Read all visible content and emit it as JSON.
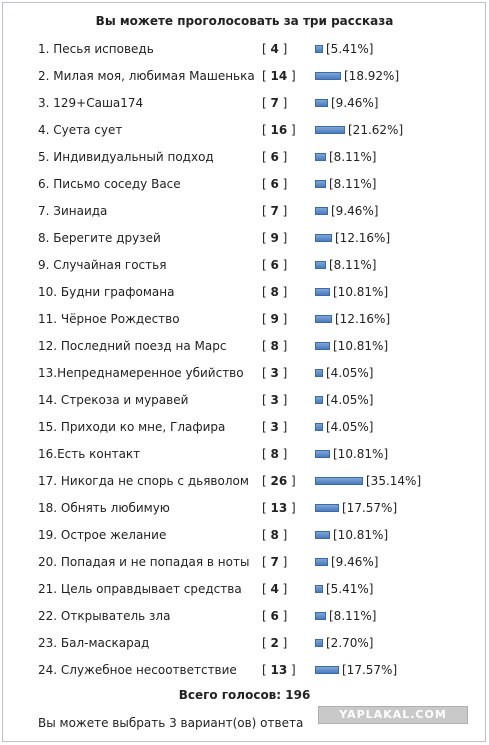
{
  "poll": {
    "title": "Вы можете проголосовать за три рассказа",
    "bar_color": "#4a7bbd",
    "options": [
      {
        "label": "1. Песья исповедь",
        "votes": "4",
        "percent": "[5.41%]",
        "share": 5.41
      },
      {
        "label": "2. Милая моя, любимая Машенька",
        "votes": "14",
        "percent": "[18.92%]",
        "share": 18.92
      },
      {
        "label": "3. 129+Саша174",
        "votes": "7",
        "percent": "[9.46%]",
        "share": 9.46
      },
      {
        "label": "4. Суета сует",
        "votes": "16",
        "percent": "[21.62%]",
        "share": 21.62
      },
      {
        "label": "5. Индивидуальный подход",
        "votes": "6",
        "percent": "[8.11%]",
        "share": 8.11
      },
      {
        "label": "6. Письмо соседу Васе",
        "votes": "6",
        "percent": "[8.11%]",
        "share": 8.11
      },
      {
        "label": "7. Зинаида",
        "votes": "7",
        "percent": "[9.46%]",
        "share": 9.46
      },
      {
        "label": "8. Берегите друзей",
        "votes": "9",
        "percent": "[12.16%]",
        "share": 12.16
      },
      {
        "label": "9. Случайная гостья",
        "votes": "6",
        "percent": "[8.11%]",
        "share": 8.11
      },
      {
        "label": "10. Будни графомана",
        "votes": "8",
        "percent": "[10.81%]",
        "share": 10.81
      },
      {
        "label": "11. Чёрное Рождество",
        "votes": "9",
        "percent": "[12.16%]",
        "share": 12.16
      },
      {
        "label": "12. Последний поезд на Марс",
        "votes": "8",
        "percent": "[10.81%]",
        "share": 10.81
      },
      {
        "label": "13.Непреднамеренное убийство",
        "votes": "3",
        "percent": "[4.05%]",
        "share": 4.05
      },
      {
        "label": "14. Стрекоза и муравей",
        "votes": "3",
        "percent": "[4.05%]",
        "share": 4.05
      },
      {
        "label": "15. Приходи ко мне, Глафира",
        "votes": "3",
        "percent": "[4.05%]",
        "share": 4.05
      },
      {
        "label": "16.Есть контакт",
        "votes": "8",
        "percent": "[10.81%]",
        "share": 10.81
      },
      {
        "label": "17. Никогда не спорь с дьяволом",
        "votes": "26",
        "percent": "[35.14%]",
        "share": 35.14
      },
      {
        "label": "18. Обнять любимую",
        "votes": "13",
        "percent": "[17.57%]",
        "share": 17.57
      },
      {
        "label": "19. Острое желание",
        "votes": "8",
        "percent": "[10.81%]",
        "share": 10.81
      },
      {
        "label": "20. Попадая и не попадая в ноты",
        "votes": "7",
        "percent": "[9.46%]",
        "share": 9.46
      },
      {
        "label": "21. Цель оправдывает средства",
        "votes": "4",
        "percent": "[5.41%]",
        "share": 5.41
      },
      {
        "label": "22. Открыватель зла",
        "votes": "6",
        "percent": "[8.11%]",
        "share": 8.11
      },
      {
        "label": "23. Бал-маскарад",
        "votes": "2",
        "percent": "[2.70%]",
        "share": 2.7
      },
      {
        "label": "24. Служебное несоответствие",
        "votes": "13",
        "percent": "[17.57%]",
        "share": 17.57
      }
    ],
    "total_text": "Всего голосов: 196",
    "choose_note": "Вы можете выбрать 3 вариант(ов) ответа"
  },
  "watermark": {
    "text": "YAPLAKAL.COM"
  }
}
